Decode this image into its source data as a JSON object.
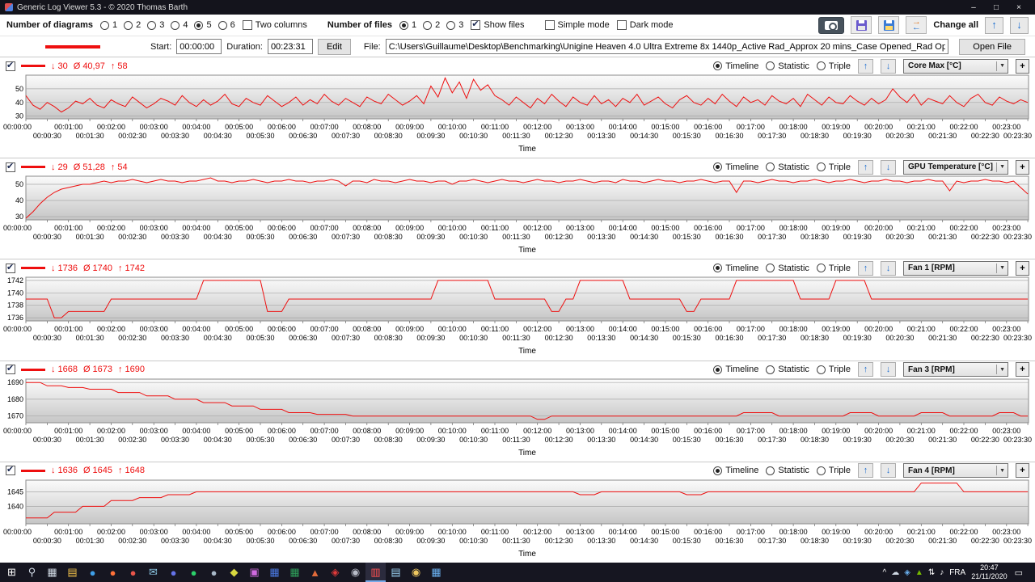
{
  "window": {
    "title": "Generic Log Viewer 5.3 - © 2020 Thomas Barth",
    "minimize": "–",
    "maximize": "□",
    "close": "×"
  },
  "toolbar": {
    "diagrams_label": "Number of diagrams",
    "diagram_options": [
      "1",
      "2",
      "3",
      "4",
      "5",
      "6"
    ],
    "diagrams_selected": "5",
    "two_columns_label": "Two columns",
    "files_label": "Number of files",
    "file_options": [
      "1",
      "2",
      "3"
    ],
    "files_selected": "1",
    "show_files_label": "Show files",
    "simple_mode_label": "Simple mode",
    "dark_mode_label": "Dark mode",
    "change_all_label": "Change all"
  },
  "filebar": {
    "start_label": "Start:",
    "start_value": "00:00:00",
    "duration_label": "Duration:",
    "duration_value": "00:23:31",
    "edit_button": "Edit",
    "file_label": "File:",
    "file_path": "C:\\Users\\Guillaume\\Desktop\\Benchmarking\\Unigine Heaven 4.0 Ultra Extreme 8x 1440p_Active Rad_Approx 20 mins_Case Opened_Rad Opened_Pulling Air In.CSV",
    "open_file_button": "Open File"
  },
  "panel_controls": {
    "timeline": "Timeline",
    "statistic": "Statistic",
    "triple": "Triple",
    "time_label": "Time",
    "min_symbol": "↓",
    "avg_symbol": "Ø",
    "max_symbol": "↑",
    "plus": "+",
    "caret": "▼",
    "up": "↑",
    "down": "↓"
  },
  "icons": {
    "sync_top": "→",
    "sync_bottom": "←"
  },
  "chart_config": {
    "duration_s": 1411,
    "tick_interval_s": 30,
    "line_color": "#ee0f0f",
    "plot_bg_top": "#fbfbfb",
    "plot_bg_bottom": "#c6c6c6"
  },
  "charts": [
    {
      "type": "line",
      "name": "Core Max [°C]",
      "min": "30",
      "avg": "40,97",
      "max": "58",
      "yticks": [
        30,
        40,
        50
      ],
      "ylim": [
        28,
        60
      ],
      "x_step": 10,
      "values": [
        45,
        38,
        35,
        40,
        37,
        33,
        36,
        41,
        39,
        43,
        38,
        36,
        42,
        39,
        37,
        44,
        40,
        36,
        39,
        43,
        41,
        38,
        45,
        40,
        37,
        42,
        38,
        41,
        46,
        39,
        37,
        43,
        40,
        38,
        45,
        41,
        37,
        40,
        44,
        38,
        42,
        39,
        46,
        41,
        38,
        43,
        40,
        37,
        44,
        41,
        39,
        46,
        42,
        38,
        41,
        45,
        39,
        52,
        44,
        58,
        47,
        55,
        43,
        57,
        49,
        53,
        45,
        42,
        38,
        44,
        40,
        36,
        43,
        39,
        46,
        41,
        37,
        44,
        40,
        38,
        45,
        39,
        42,
        37,
        43,
        40,
        46,
        38,
        41,
        44,
        39,
        36,
        42,
        45,
        40,
        38,
        43,
        39,
        46,
        41,
        37,
        44,
        40,
        42,
        38,
        45,
        41,
        39,
        43,
        37,
        46,
        42,
        38,
        44,
        40,
        39,
        45,
        41,
        38,
        43,
        39,
        42,
        50,
        44,
        40,
        46,
        38,
        43,
        41,
        39,
        45,
        40,
        37,
        43,
        46,
        40,
        38,
        44,
        41,
        39,
        42,
        40
      ]
    },
    {
      "type": "line",
      "name": "GPU Temperature [°C]",
      "min": "29",
      "avg": "51,28",
      "max": "54",
      "yticks": [
        30,
        40,
        50
      ],
      "ylim": [
        28,
        55
      ],
      "x_step": 10,
      "values": [
        29,
        33,
        38,
        42,
        45,
        47,
        48,
        49,
        50,
        50,
        51,
        52,
        51,
        52,
        52,
        53,
        52,
        51,
        52,
        53,
        52,
        52,
        51,
        52,
        52,
        53,
        54,
        52,
        52,
        51,
        52,
        52,
        53,
        52,
        51,
        52,
        52,
        53,
        52,
        52,
        51,
        52,
        52,
        53,
        52,
        49,
        52,
        52,
        51,
        53,
        52,
        52,
        51,
        52,
        53,
        52,
        52,
        51,
        52,
        52,
        50,
        52,
        52,
        53,
        52,
        51,
        52,
        53,
        52,
        52,
        51,
        52,
        53,
        52,
        52,
        51,
        52,
        52,
        53,
        52,
        51,
        52,
        52,
        51,
        53,
        52,
        52,
        51,
        52,
        53,
        52,
        52,
        51,
        52,
        52,
        53,
        52,
        51,
        52,
        52,
        45,
        52,
        52,
        51,
        52,
        53,
        52,
        52,
        51,
        52,
        52,
        53,
        52,
        51,
        52,
        52,
        53,
        52,
        51,
        52,
        52,
        53,
        52,
        52,
        51,
        52,
        52,
        53,
        52,
        52,
        46,
        52,
        51,
        52,
        52,
        53,
        52,
        52,
        51,
        52,
        48,
        44
      ]
    },
    {
      "type": "line",
      "name": "Fan 1 [RPM]",
      "min": "1736",
      "avg": "1740",
      "max": "1742",
      "yticks": [
        1736,
        1738,
        1740,
        1742
      ],
      "ylim": [
        1735.5,
        1742.5
      ],
      "x_step": 10,
      "segments": [
        [
          4,
          1739
        ],
        [
          2,
          1736
        ],
        [
          6,
          1737
        ],
        [
          13,
          1739
        ],
        [
          9,
          1742
        ],
        [
          3,
          1737
        ],
        [
          21,
          1739
        ],
        [
          8,
          1742
        ],
        [
          8,
          1739
        ],
        [
          2,
          1737
        ],
        [
          2,
          1739
        ],
        [
          7,
          1742
        ],
        [
          8,
          1739
        ],
        [
          2,
          1737
        ],
        [
          5,
          1739
        ],
        [
          9,
          1742
        ],
        [
          5,
          1739
        ],
        [
          5,
          1742
        ],
        [
          23,
          1739
        ]
      ]
    },
    {
      "type": "line",
      "name": "Fan 3 [RPM]",
      "min": "1668",
      "avg": "1673",
      "max": "1690",
      "yticks": [
        1670,
        1680,
        1690
      ],
      "ylim": [
        1666,
        1692
      ],
      "x_step": 10,
      "segments": [
        [
          3,
          1690
        ],
        [
          3,
          1688
        ],
        [
          3,
          1687
        ],
        [
          4,
          1686
        ],
        [
          4,
          1684
        ],
        [
          4,
          1682
        ],
        [
          4,
          1680
        ],
        [
          4,
          1678
        ],
        [
          4,
          1676
        ],
        [
          4,
          1674
        ],
        [
          4,
          1672
        ],
        [
          5,
          1671
        ],
        [
          26,
          1670
        ],
        [
          2,
          1668
        ],
        [
          27,
          1670
        ],
        [
          5,
          1672
        ],
        [
          10,
          1670
        ],
        [
          4,
          1672
        ],
        [
          6,
          1670
        ],
        [
          4,
          1672
        ],
        [
          7,
          1670
        ],
        [
          3,
          1672
        ],
        [
          2,
          1670
        ]
      ]
    },
    {
      "type": "line",
      "name": "Fan 4 [RPM]",
      "min": "1636",
      "avg": "1645",
      "max": "1648",
      "yticks": [
        1640,
        1645
      ],
      "ylim": [
        1634,
        1649
      ],
      "x_step": 10,
      "segments": [
        [
          4,
          1636
        ],
        [
          4,
          1638
        ],
        [
          4,
          1640
        ],
        [
          4,
          1642
        ],
        [
          4,
          1643
        ],
        [
          4,
          1644
        ],
        [
          54,
          1645
        ],
        [
          3,
          1644
        ],
        [
          12,
          1645
        ],
        [
          3,
          1644
        ],
        [
          30,
          1645
        ],
        [
          6,
          1648
        ],
        [
          10,
          1645
        ]
      ]
    }
  ],
  "taskbar": {
    "language": "FRA",
    "time": "20:47",
    "date": "21/11/2020",
    "notification_glyph": "▭",
    "icons": [
      {
        "name": "start",
        "glyph": "⊞",
        "color": "#ffffff"
      },
      {
        "name": "search",
        "glyph": "⚲",
        "color": "#cfd8e3"
      },
      {
        "name": "task-view",
        "glyph": "▦",
        "color": "#cfd8e3"
      },
      {
        "name": "file-explorer",
        "glyph": "▤",
        "color": "#f0c04a"
      },
      {
        "name": "browser-edge",
        "glyph": "●",
        "color": "#3f9fe8"
      },
      {
        "name": "browser-firefox",
        "glyph": "●",
        "color": "#ff7139"
      },
      {
        "name": "browser-chrome",
        "glyph": "●",
        "color": "#e8554a"
      },
      {
        "name": "mail-app",
        "glyph": "✉",
        "color": "#8ecbe8"
      },
      {
        "name": "discord",
        "glyph": "●",
        "color": "#6472e8"
      },
      {
        "name": "spotify",
        "glyph": "●",
        "color": "#2bd06a"
      },
      {
        "name": "steam",
        "glyph": "●",
        "color": "#a8b8c8"
      },
      {
        "name": "game-launcher",
        "glyph": "◆",
        "color": "#d8d840"
      },
      {
        "name": "photos-app",
        "glyph": "▣",
        "color": "#d06ae0"
      },
      {
        "name": "office-word",
        "glyph": "▦",
        "color": "#4a78e0"
      },
      {
        "name": "office-excel",
        "glyph": "▦",
        "color": "#2f9e5a"
      },
      {
        "name": "hwinfo",
        "glyph": "▲",
        "color": "#e06a3a"
      },
      {
        "name": "msi-afterburner",
        "glyph": "◈",
        "color": "#e03a3a"
      },
      {
        "name": "obs-studio",
        "glyph": "◉",
        "color": "#b8bcc8"
      },
      {
        "name": "generic-log-viewer",
        "glyph": "▥",
        "color": "#ff5050",
        "active": true
      },
      {
        "name": "notepad",
        "glyph": "▤",
        "color": "#9ad0f0"
      },
      {
        "name": "paint",
        "glyph": "◉",
        "color": "#f0c860"
      },
      {
        "name": "calculator",
        "glyph": "▦",
        "color": "#6ab0f0"
      }
    ],
    "tray_icons": [
      {
        "name": "tray-expand",
        "glyph": "^",
        "color": "#ffffff"
      },
      {
        "name": "onedrive",
        "glyph": "☁",
        "color": "#cfd8e3"
      },
      {
        "name": "security-shield",
        "glyph": "◈",
        "color": "#6ab0f0"
      },
      {
        "name": "gpu-tray",
        "glyph": "▲",
        "color": "#76b900"
      },
      {
        "name": "network",
        "glyph": "⇅",
        "color": "#ffffff"
      },
      {
        "name": "volume",
        "glyph": "♪",
        "color": "#ffffff"
      }
    ]
  }
}
